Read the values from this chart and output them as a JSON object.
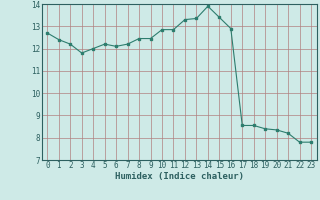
{
  "x": [
    0,
    1,
    2,
    3,
    4,
    5,
    6,
    7,
    8,
    9,
    10,
    11,
    12,
    13,
    14,
    15,
    16,
    17,
    18,
    19,
    20,
    21,
    22,
    23
  ],
  "y": [
    12.7,
    12.4,
    12.2,
    11.8,
    12.0,
    12.2,
    12.1,
    12.2,
    12.45,
    12.45,
    12.85,
    12.85,
    13.3,
    13.35,
    13.9,
    13.4,
    12.9,
    8.55,
    8.55,
    8.4,
    8.35,
    8.2,
    7.8,
    7.8
  ],
  "line_color": "#2d7d6e",
  "marker": "s",
  "markersize": 1.8,
  "linewidth": 0.8,
  "bg_color": "#ceeae7",
  "grid_color_major": "#b08080",
  "grid_color_minor": "#d4b0b0",
  "xlabel": "Humidex (Indice chaleur)",
  "xlabel_fontsize": 6.5,
  "tick_fontsize": 5.5,
  "tick_color": "#2d6060",
  "ylim": [
    7,
    14
  ],
  "xlim": [
    -0.5,
    23.5
  ],
  "yticks": [
    7,
    8,
    9,
    10,
    11,
    12,
    13,
    14
  ],
  "xticks": [
    0,
    1,
    2,
    3,
    4,
    5,
    6,
    7,
    8,
    9,
    10,
    11,
    12,
    13,
    14,
    15,
    16,
    17,
    18,
    19,
    20,
    21,
    22,
    23
  ]
}
